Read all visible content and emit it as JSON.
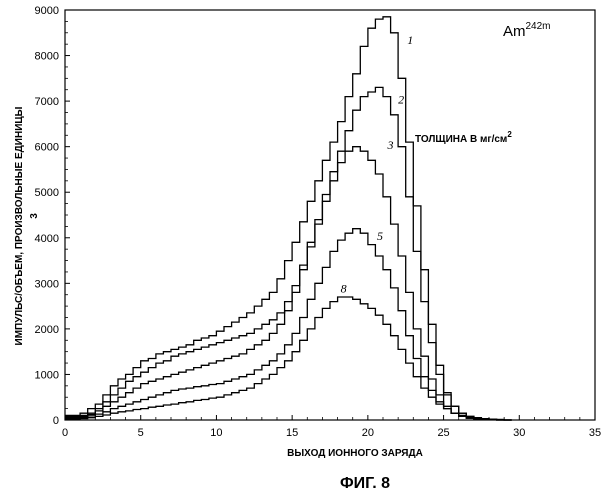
{
  "chart_data": {
    "type": "line",
    "isotope_base": "Am",
    "isotope_sup": "242m",
    "annotation_text": "ТОЛЩИНА В мг/см",
    "annotation_sup": "2",
    "ylabel": "ИМПУЛЬС/ОБЪЕМ, ПРОИЗВОЛЬНЫЕ ЕДИНИЦЫ",
    "ylabel_unit": "3",
    "xlabel": "ВЫХОД ИОННОГО ЗАРЯДА",
    "caption": "ФИГ. 8",
    "xlim": [
      0,
      35
    ],
    "ylim": [
      0,
      9000
    ],
    "x_ticks": [
      0,
      5,
      10,
      15,
      20,
      25,
      30,
      35
    ],
    "y_ticks": [
      0,
      1000,
      2000,
      3000,
      4000,
      5000,
      6000,
      7000,
      8000,
      9000
    ],
    "grid": false,
    "step_width": 0.5,
    "series": [
      {
        "name": "1",
        "label_at": [
          22.6,
          8250
        ],
        "x": [
          0,
          0.5,
          1,
          1.5,
          2,
          2.5,
          3,
          3.5,
          4,
          4.5,
          5,
          5.5,
          6,
          6.5,
          7,
          7.5,
          8,
          8.5,
          9,
          9.5,
          10,
          10.5,
          11,
          11.5,
          12,
          12.5,
          13,
          13.5,
          14,
          14.5,
          15,
          15.5,
          16,
          16.5,
          17,
          17.5,
          18,
          18.5,
          19,
          19.5,
          20,
          20.5,
          21,
          21.5,
          22,
          22.5,
          23,
          23.5,
          24,
          24.5,
          25,
          25.5,
          26,
          26.5,
          27,
          27.5,
          28,
          28.5,
          29
        ],
        "y": [
          100,
          100,
          150,
          250,
          350,
          550,
          750,
          900,
          1000,
          1150,
          1300,
          1350,
          1450,
          1500,
          1550,
          1600,
          1650,
          1750,
          1800,
          1850,
          1950,
          2050,
          2150,
          2250,
          2350,
          2500,
          2650,
          2800,
          3100,
          3500,
          3900,
          4350,
          4800,
          5250,
          5700,
          6100,
          6550,
          7100,
          7600,
          8200,
          8600,
          8800,
          8850,
          8500,
          7500,
          6100,
          4700,
          3300,
          2100,
          1200,
          600,
          300,
          150,
          80,
          50,
          30,
          20,
          10,
          0
        ]
      },
      {
        "name": "2",
        "label_at": [
          22.0,
          6950
        ],
        "x": [
          0,
          0.5,
          1,
          1.5,
          2,
          2.5,
          3,
          3.5,
          4,
          4.5,
          5,
          5.5,
          6,
          6.5,
          7,
          7.5,
          8,
          8.5,
          9,
          9.5,
          10,
          10.5,
          11,
          11.5,
          12,
          12.5,
          13,
          13.5,
          14,
          14.5,
          15,
          15.5,
          16,
          16.5,
          17,
          17.5,
          18,
          18.5,
          19,
          19.5,
          20,
          20.5,
          21,
          21.5,
          22,
          22.5,
          23,
          23.5,
          24,
          24.5,
          25,
          25.5,
          26,
          26.5,
          27,
          27.5,
          28,
          28.5,
          29
        ],
        "y": [
          80,
          80,
          100,
          150,
          250,
          400,
          550,
          700,
          850,
          950,
          1050,
          1150,
          1250,
          1300,
          1400,
          1450,
          1500,
          1550,
          1600,
          1650,
          1700,
          1750,
          1800,
          1850,
          1900,
          2000,
          2100,
          2200,
          2350,
          2600,
          2950,
          3400,
          3900,
          4400,
          4950,
          5450,
          5900,
          6350,
          6800,
          7100,
          7200,
          7300,
          7100,
          6700,
          6000,
          4900,
          3700,
          2600,
          1700,
          1000,
          550,
          300,
          150,
          80,
          50,
          30,
          20,
          10,
          0
        ]
      },
      {
        "name": "3",
        "label_at": [
          21.3,
          5950
        ],
        "x": [
          0,
          0.5,
          1,
          1.5,
          2,
          2.5,
          3,
          3.5,
          4,
          4.5,
          5,
          5.5,
          6,
          6.5,
          7,
          7.5,
          8,
          8.5,
          9,
          9.5,
          10,
          10.5,
          11,
          11.5,
          12,
          12.5,
          13,
          13.5,
          14,
          14.5,
          15,
          15.5,
          16,
          16.5,
          17,
          17.5,
          18,
          18.5,
          19,
          19.5,
          20,
          20.5,
          21,
          21.5,
          22,
          22.5,
          23,
          23.5,
          24,
          24.5,
          25,
          25.5,
          26,
          26.5,
          27,
          27.5,
          28,
          28.5,
          29
        ],
        "y": [
          60,
          60,
          80,
          120,
          200,
          300,
          400,
          500,
          600,
          700,
          800,
          850,
          900,
          950,
          1000,
          1050,
          1100,
          1150,
          1200,
          1250,
          1300,
          1350,
          1400,
          1450,
          1550,
          1650,
          1750,
          1900,
          2100,
          2400,
          2800,
          3300,
          3800,
          4300,
          4800,
          5250,
          5650,
          5900,
          6000,
          5900,
          5700,
          5400,
          4900,
          4300,
          3600,
          2800,
          2000,
          1400,
          900,
          550,
          300,
          150,
          80,
          40,
          20,
          10,
          5,
          0,
          0
        ]
      },
      {
        "name": "5",
        "label_at": [
          20.6,
          3950
        ],
        "x": [
          0,
          0.5,
          1,
          1.5,
          2,
          2.5,
          3,
          3.5,
          4,
          4.5,
          5,
          5.5,
          6,
          6.5,
          7,
          7.5,
          8,
          8.5,
          9,
          9.5,
          10,
          10.5,
          11,
          11.5,
          12,
          12.5,
          13,
          13.5,
          14,
          14.5,
          15,
          15.5,
          16,
          16.5,
          17,
          17.5,
          18,
          18.5,
          19,
          19.5,
          20,
          20.5,
          21,
          21.5,
          22,
          22.5,
          23,
          23.5,
          24,
          24.5,
          25,
          25.5,
          26,
          26.5,
          27,
          27.5,
          28,
          28.5,
          29
        ],
        "y": [
          40,
          40,
          60,
          90,
          130,
          180,
          250,
          300,
          350,
          400,
          450,
          500,
          550,
          600,
          650,
          680,
          700,
          730,
          750,
          780,
          800,
          850,
          900,
          950,
          1000,
          1100,
          1200,
          1300,
          1450,
          1650,
          1900,
          2250,
          2650,
          3000,
          3350,
          3700,
          3950,
          4100,
          4200,
          4100,
          3850,
          3600,
          3300,
          2900,
          2400,
          1850,
          1350,
          950,
          650,
          400,
          250,
          150,
          80,
          40,
          20,
          10,
          5,
          0,
          0
        ]
      },
      {
        "name": "8",
        "label_at": [
          18.2,
          2800
        ],
        "x": [
          0,
          0.5,
          1,
          1.5,
          2,
          2.5,
          3,
          3.5,
          4,
          4.5,
          5,
          5.5,
          6,
          6.5,
          7,
          7.5,
          8,
          8.5,
          9,
          9.5,
          10,
          10.5,
          11,
          11.5,
          12,
          12.5,
          13,
          13.5,
          14,
          14.5,
          15,
          15.5,
          16,
          16.5,
          17,
          17.5,
          18,
          18.5,
          19,
          19.5,
          20,
          20.5,
          21,
          21.5,
          22,
          22.5,
          23,
          23.5,
          24,
          24.5,
          25,
          25.5,
          26,
          26.5,
          27,
          27.5,
          28,
          28.5,
          29
        ],
        "y": [
          20,
          20,
          30,
          50,
          80,
          110,
          150,
          180,
          200,
          230,
          250,
          280,
          300,
          330,
          350,
          380,
          400,
          430,
          450,
          480,
          500,
          550,
          600,
          650,
          700,
          800,
          900,
          1000,
          1150,
          1300,
          1500,
          1750,
          2000,
          2250,
          2450,
          2600,
          2700,
          2700,
          2650,
          2550,
          2450,
          2300,
          2100,
          1850,
          1550,
          1250,
          950,
          700,
          500,
          350,
          250,
          150,
          100,
          60,
          30,
          15,
          8,
          0,
          0
        ]
      }
    ]
  }
}
